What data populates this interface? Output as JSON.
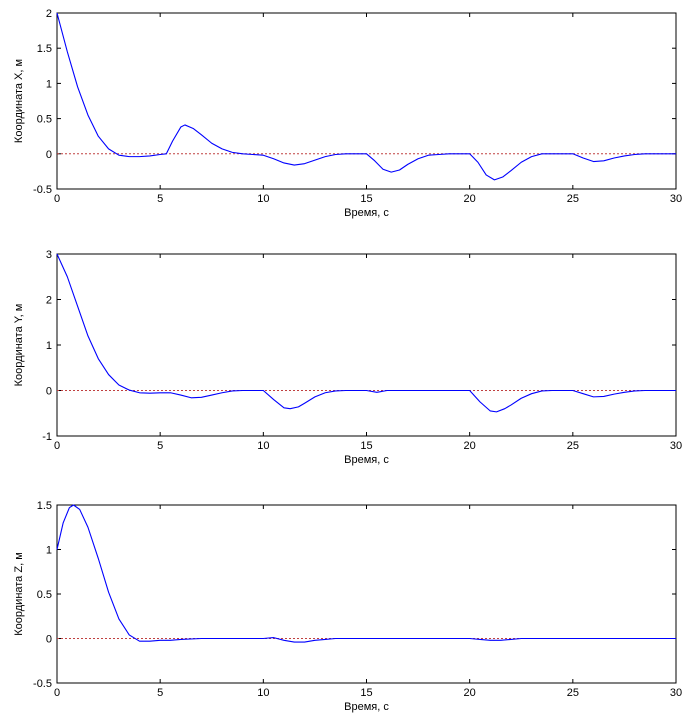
{
  "chart_data": [
    {
      "type": "line",
      "xlabel": "Время, с",
      "ylabel": "Координата X, м",
      "xlim": [
        0,
        30
      ],
      "ylim": [
        -0.5,
        2
      ],
      "xticks": [
        0,
        5,
        10,
        15,
        20,
        25,
        30
      ],
      "yticks": [
        -0.5,
        0,
        0.5,
        1,
        1.5,
        2
      ],
      "ytick_labels": [
        "-0.5",
        "0",
        "0.5",
        "1",
        "1.5",
        "2"
      ],
      "grid": false,
      "series": [
        {
          "color": "#0000ff",
          "points": [
            [
              0,
              2.0
            ],
            [
              0.5,
              1.45
            ],
            [
              1,
              0.95
            ],
            [
              1.5,
              0.55
            ],
            [
              2,
              0.25
            ],
            [
              2.5,
              0.07
            ],
            [
              3,
              -0.02
            ],
            [
              3.5,
              -0.04
            ],
            [
              4,
              -0.04
            ],
            [
              4.5,
              -0.03
            ],
            [
              5,
              -0.01
            ],
            [
              5.3,
              0.0
            ],
            [
              5.6,
              0.18
            ],
            [
              6,
              0.38
            ],
            [
              6.2,
              0.41
            ],
            [
              6.6,
              0.36
            ],
            [
              7,
              0.27
            ],
            [
              7.5,
              0.15
            ],
            [
              8,
              0.07
            ],
            [
              8.5,
              0.02
            ],
            [
              9,
              0.0
            ],
            [
              9.5,
              -0.01
            ],
            [
              10,
              -0.02
            ],
            [
              10.5,
              -0.07
            ],
            [
              11,
              -0.13
            ],
            [
              11.5,
              -0.16
            ],
            [
              12,
              -0.14
            ],
            [
              12.5,
              -0.09
            ],
            [
              13,
              -0.04
            ],
            [
              13.5,
              -0.01
            ],
            [
              14,
              0.0
            ],
            [
              14.5,
              0.0
            ],
            [
              15,
              0.0
            ],
            [
              15.4,
              -0.1
            ],
            [
              15.8,
              -0.22
            ],
            [
              16.2,
              -0.26
            ],
            [
              16.6,
              -0.23
            ],
            [
              17,
              -0.15
            ],
            [
              17.5,
              -0.07
            ],
            [
              18,
              -0.02
            ],
            [
              18.5,
              -0.01
            ],
            [
              19,
              0.0
            ],
            [
              20,
              0.0
            ],
            [
              20.4,
              -0.12
            ],
            [
              20.8,
              -0.3
            ],
            [
              21.2,
              -0.37
            ],
            [
              21.6,
              -0.33
            ],
            [
              22,
              -0.24
            ],
            [
              22.5,
              -0.12
            ],
            [
              23,
              -0.04
            ],
            [
              23.5,
              0.0
            ],
            [
              24,
              0.0
            ],
            [
              25,
              0.0
            ],
            [
              25.5,
              -0.06
            ],
            [
              26,
              -0.11
            ],
            [
              26.5,
              -0.1
            ],
            [
              27,
              -0.06
            ],
            [
              27.5,
              -0.03
            ],
            [
              28,
              -0.01
            ],
            [
              28.5,
              0.0
            ],
            [
              29,
              0.0
            ],
            [
              30,
              0.0
            ]
          ]
        },
        {
          "color": "#c04040",
          "points": [
            [
              0,
              0
            ],
            [
              30,
              0
            ]
          ]
        }
      ]
    },
    {
      "type": "line",
      "xlabel": "Время, с",
      "ylabel": "Координата Y, м",
      "xlim": [
        0,
        30
      ],
      "ylim": [
        -1,
        3
      ],
      "xticks": [
        0,
        5,
        10,
        15,
        20,
        25,
        30
      ],
      "yticks": [
        -1,
        0,
        1,
        2,
        3
      ],
      "ytick_labels": [
        "-1",
        "0",
        "1",
        "2",
        "3"
      ],
      "grid": false,
      "series": [
        {
          "color": "#0000ff",
          "points": [
            [
              0,
              3.0
            ],
            [
              0.5,
              2.5
            ],
            [
              1,
              1.85
            ],
            [
              1.5,
              1.2
            ],
            [
              2,
              0.7
            ],
            [
              2.5,
              0.35
            ],
            [
              3,
              0.12
            ],
            [
              3.5,
              0.01
            ],
            [
              4,
              -0.05
            ],
            [
              4.5,
              -0.06
            ],
            [
              5,
              -0.05
            ],
            [
              5.5,
              -0.05
            ],
            [
              6,
              -0.1
            ],
            [
              6.5,
              -0.16
            ],
            [
              7,
              -0.15
            ],
            [
              7.5,
              -0.1
            ],
            [
              8,
              -0.05
            ],
            [
              8.5,
              -0.01
            ],
            [
              9,
              0.0
            ],
            [
              10,
              0.0
            ],
            [
              10.5,
              -0.2
            ],
            [
              11,
              -0.38
            ],
            [
              11.3,
              -0.4
            ],
            [
              11.7,
              -0.36
            ],
            [
              12,
              -0.28
            ],
            [
              12.5,
              -0.14
            ],
            [
              13,
              -0.05
            ],
            [
              13.5,
              -0.01
            ],
            [
              14,
              0.0
            ],
            [
              15,
              0.0
            ],
            [
              15.5,
              -0.04
            ],
            [
              16,
              0.0
            ],
            [
              17,
              0.0
            ],
            [
              18,
              0.0
            ],
            [
              19,
              0.0
            ],
            [
              20,
              0.0
            ],
            [
              20.5,
              -0.25
            ],
            [
              21,
              -0.45
            ],
            [
              21.3,
              -0.47
            ],
            [
              21.7,
              -0.4
            ],
            [
              22,
              -0.32
            ],
            [
              22.5,
              -0.17
            ],
            [
              23,
              -0.07
            ],
            [
              23.5,
              -0.01
            ],
            [
              24,
              0.0
            ],
            [
              25,
              0.0
            ],
            [
              25.5,
              -0.07
            ],
            [
              26,
              -0.14
            ],
            [
              26.5,
              -0.13
            ],
            [
              27,
              -0.08
            ],
            [
              27.5,
              -0.04
            ],
            [
              28,
              -0.01
            ],
            [
              28.5,
              0.0
            ],
            [
              29,
              0.0
            ],
            [
              30,
              0.0
            ]
          ]
        },
        {
          "color": "#c04040",
          "points": [
            [
              0,
              0
            ],
            [
              30,
              0
            ]
          ]
        }
      ]
    },
    {
      "type": "line",
      "xlabel": "Время, с",
      "ylabel": "Координата Z, м",
      "xlim": [
        0,
        30
      ],
      "ylim": [
        -0.5,
        1.5
      ],
      "xticks": [
        0,
        5,
        10,
        15,
        20,
        25,
        30
      ],
      "yticks": [
        -0.5,
        0,
        0.5,
        1,
        1.5
      ],
      "ytick_labels": [
        "-0.5",
        "0",
        "0.5",
        "1",
        "1.5"
      ],
      "grid": false,
      "series": [
        {
          "color": "#0000ff",
          "points": [
            [
              0,
              1.0
            ],
            [
              0.3,
              1.3
            ],
            [
              0.6,
              1.47
            ],
            [
              0.8,
              1.5
            ],
            [
              1.1,
              1.45
            ],
            [
              1.5,
              1.25
            ],
            [
              2,
              0.9
            ],
            [
              2.5,
              0.52
            ],
            [
              3,
              0.22
            ],
            [
              3.5,
              0.04
            ],
            [
              4,
              -0.03
            ],
            [
              4.5,
              -0.03
            ],
            [
              5,
              -0.02
            ],
            [
              5.5,
              -0.02
            ],
            [
              6,
              -0.01
            ],
            [
              7,
              0.0
            ],
            [
              8,
              0.0
            ],
            [
              9,
              0.0
            ],
            [
              10,
              0.0
            ],
            [
              10.5,
              0.01
            ],
            [
              11,
              -0.02
            ],
            [
              11.5,
              -0.04
            ],
            [
              12,
              -0.04
            ],
            [
              12.5,
              -0.02
            ],
            [
              13,
              -0.01
            ],
            [
              13.5,
              0.0
            ],
            [
              15,
              0.0
            ],
            [
              16,
              0.0
            ],
            [
              17,
              0.0
            ],
            [
              18,
              0.0
            ],
            [
              19,
              0.0
            ],
            [
              20,
              0.0
            ],
            [
              20.5,
              -0.01
            ],
            [
              21,
              -0.02
            ],
            [
              21.5,
              -0.02
            ],
            [
              22,
              -0.01
            ],
            [
              22.5,
              0.0
            ],
            [
              24,
              0.0
            ],
            [
              26,
              0.0
            ],
            [
              28,
              0.0
            ],
            [
              30,
              0.0
            ]
          ]
        },
        {
          "color": "#c04040",
          "points": [
            [
              0,
              0
            ],
            [
              30,
              0
            ]
          ]
        }
      ]
    }
  ]
}
